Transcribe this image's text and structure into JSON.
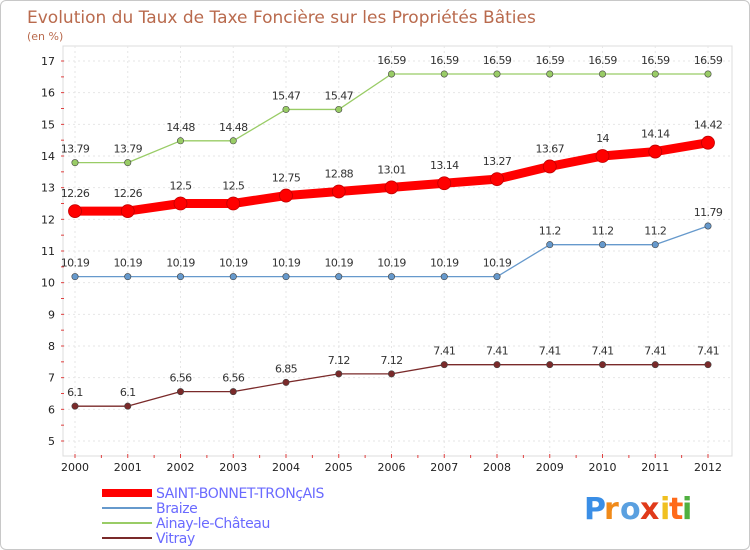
{
  "chart_data": {
    "type": "line",
    "title": "Evolution du Taux de Taxe Foncière sur les Propriétés Bâties",
    "subtitle": "(en %)",
    "xlabel": "",
    "ylabel": "",
    "ylim": [
      5,
      17
    ],
    "yticks": [
      "5",
      "6",
      "7",
      "8",
      "9",
      "10",
      "11",
      "12",
      "13",
      "14",
      "15",
      "16",
      "17"
    ],
    "categories": [
      "2000",
      "2001",
      "2002",
      "2003",
      "2004",
      "2005",
      "2006",
      "2007",
      "2008",
      "2009",
      "2010",
      "2011",
      "2012"
    ],
    "grid": true,
    "legend_position": "bottom-left",
    "series": [
      {
        "name": "SAINT-BONNET-TRONçAIS",
        "color": "#ff0000",
        "legend_text_color": "#6a6aff",
        "values": [
          12.26,
          12.26,
          12.5,
          12.5,
          12.75,
          12.88,
          13.01,
          13.14,
          13.27,
          13.67,
          14,
          14.14,
          14.42
        ],
        "labels": [
          "12.26",
          "12.26",
          "12.5",
          "12.5",
          "12.75",
          "12.88",
          "13.01",
          "13.14",
          "13.27",
          "13.67",
          "14",
          "14.14",
          "14.42"
        ]
      },
      {
        "name": "Braize",
        "color": "#6699cc",
        "legend_text_color": "#6a6aff",
        "values": [
          10.19,
          10.19,
          10.19,
          10.19,
          10.19,
          10.19,
          10.19,
          10.19,
          10.19,
          11.2,
          11.2,
          11.2,
          11.79
        ],
        "labels": [
          "10.19",
          "10.19",
          "10.19",
          "10.19",
          "10.19",
          "10.19",
          "10.19",
          "10.19",
          "10.19",
          "11.2",
          "11.2",
          "11.2",
          "11.79"
        ]
      },
      {
        "name": "Ainay-le-Château",
        "color": "#99cc66",
        "legend_text_color": "#6a6aff",
        "values": [
          13.79,
          13.79,
          14.48,
          14.48,
          15.47,
          15.47,
          16.59,
          16.59,
          16.59,
          16.59,
          16.59,
          16.59,
          16.59
        ],
        "labels": [
          "13.79",
          "13.79",
          "14.48",
          "14.48",
          "15.47",
          "15.47",
          "16.59",
          "16.59",
          "16.59",
          "16.59",
          "16.59",
          "16.59",
          "16.59"
        ]
      },
      {
        "name": "Vitray",
        "color": "#7a2a2a",
        "legend_text_color": "#6a6aff",
        "values": [
          6.1,
          6.1,
          6.56,
          6.56,
          6.85,
          7.12,
          7.12,
          7.41,
          7.41,
          7.41,
          7.41,
          7.41,
          7.41
        ],
        "labels": [
          "6.1",
          "6.1",
          "6.56",
          "6.56",
          "6.85",
          "7.12",
          "7.12",
          "7.41",
          "7.41",
          "7.41",
          "7.41",
          "7.41",
          "7.41"
        ]
      }
    ]
  },
  "logo": {
    "text": "Proxiti",
    "colors": [
      "#3a8ee6",
      "#f08a1a",
      "#5aa0e0",
      "#e03a1a",
      "#f0c020",
      "#ff6a1a",
      "#50b040"
    ]
  }
}
